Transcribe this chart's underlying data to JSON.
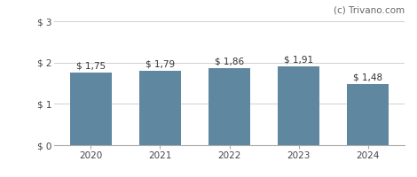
{
  "categories": [
    "2020",
    "2021",
    "2022",
    "2023",
    "2024"
  ],
  "values": [
    1.75,
    1.79,
    1.86,
    1.91,
    1.48
  ],
  "labels": [
    "$ 1,75",
    "$ 1,79",
    "$ 1,86",
    "$ 1,91",
    "$ 1,48"
  ],
  "bar_color": "#5f87a0",
  "background_color": "#ffffff",
  "ylim": [
    0,
    3
  ],
  "yticks": [
    0,
    1,
    2,
    3
  ],
  "ytick_labels": [
    "$ 0",
    "$ 1",
    "$ 2",
    "$ 3"
  ],
  "watermark": "(c) Trivano.com",
  "grid_color": "#d0d0d0",
  "label_fontsize": 7.5,
  "tick_fontsize": 7.5,
  "watermark_fontsize": 7.5,
  "bar_width": 0.6
}
